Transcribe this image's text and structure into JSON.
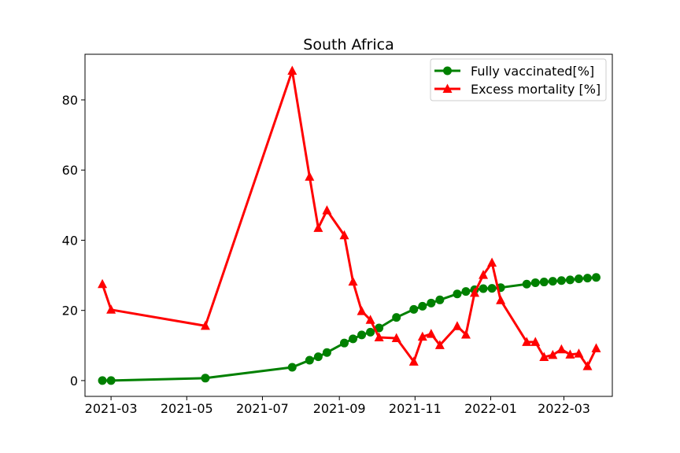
{
  "chart_data": {
    "type": "line",
    "title": "South Africa",
    "xlabel": "",
    "ylabel": "",
    "x_type": "date",
    "xlim": [
      "2021-02-08",
      "2022-04-09"
    ],
    "ylim": [
      -4.5,
      93.0
    ],
    "x_ticks": [
      "2021-03-01",
      "2021-05-01",
      "2021-07-01",
      "2021-09-01",
      "2021-11-01",
      "2022-01-01",
      "2022-03-01"
    ],
    "x_tick_labels": [
      "2021-03",
      "2021-05",
      "2021-07",
      "2021-09",
      "2021-11",
      "2022-01",
      "2022-03"
    ],
    "y_ticks": [
      0,
      20,
      40,
      60,
      80
    ],
    "y_tick_labels": [
      "0",
      "20",
      "40",
      "60",
      "80"
    ],
    "grid": false,
    "legend_position": "upper right",
    "series": [
      {
        "name": "Fully vaccinated[%]",
        "color": "#008000",
        "marker": "circle",
        "x": [
          "2021-02-22",
          "2021-03-01",
          "2021-05-16",
          "2021-07-25",
          "2021-08-08",
          "2021-08-15",
          "2021-08-22",
          "2021-09-05",
          "2021-09-12",
          "2021-09-19",
          "2021-09-26",
          "2021-10-03",
          "2021-10-17",
          "2021-10-31",
          "2021-11-07",
          "2021-11-14",
          "2021-11-21",
          "2021-12-05",
          "2021-12-12",
          "2021-12-19",
          "2021-12-26",
          "2022-01-02",
          "2022-01-09",
          "2022-01-30",
          "2022-02-06",
          "2022-02-13",
          "2022-02-20",
          "2022-02-27",
          "2022-03-06",
          "2022-03-13",
          "2022-03-20",
          "2022-03-27"
        ],
        "y": [
          0.0,
          0.0,
          0.7,
          3.8,
          5.8,
          6.8,
          8.0,
          10.7,
          11.9,
          13.0,
          13.8,
          15.0,
          18.0,
          20.3,
          21.2,
          22.1,
          23.0,
          24.7,
          25.4,
          25.9,
          26.2,
          26.3,
          26.5,
          27.5,
          27.9,
          28.1,
          28.3,
          28.5,
          28.7,
          29.0,
          29.2,
          29.4
        ]
      },
      {
        "name": "Excess mortality [%]",
        "color": "#ff0000",
        "marker": "triangle",
        "x": [
          "2021-02-22",
          "2021-03-01",
          "2021-05-16",
          "2021-07-25",
          "2021-08-08",
          "2021-08-15",
          "2021-08-22",
          "2021-09-05",
          "2021-09-12",
          "2021-09-19",
          "2021-09-26",
          "2021-10-03",
          "2021-10-17",
          "2021-10-31",
          "2021-11-07",
          "2021-11-14",
          "2021-11-21",
          "2021-12-05",
          "2021-12-12",
          "2021-12-19",
          "2021-12-26",
          "2022-01-02",
          "2022-01-09",
          "2022-01-30",
          "2022-02-06",
          "2022-02-13",
          "2022-02-20",
          "2022-02-27",
          "2022-03-06",
          "2022-03-13",
          "2022-03-20",
          "2022-03-27"
        ],
        "y": [
          27.5,
          20.2,
          15.6,
          88.3,
          58.1,
          43.5,
          48.5,
          41.4,
          28.2,
          19.8,
          17.3,
          12.3,
          12.1,
          5.4,
          12.5,
          13.3,
          10.1,
          15.5,
          13.1,
          25.0,
          30.1,
          33.6,
          22.9,
          11.0,
          11.0,
          6.7,
          7.3,
          8.9,
          7.4,
          7.7,
          4.1,
          9.2
        ]
      }
    ]
  },
  "colors": {
    "background": "#ffffff",
    "axes": "#000000"
  }
}
